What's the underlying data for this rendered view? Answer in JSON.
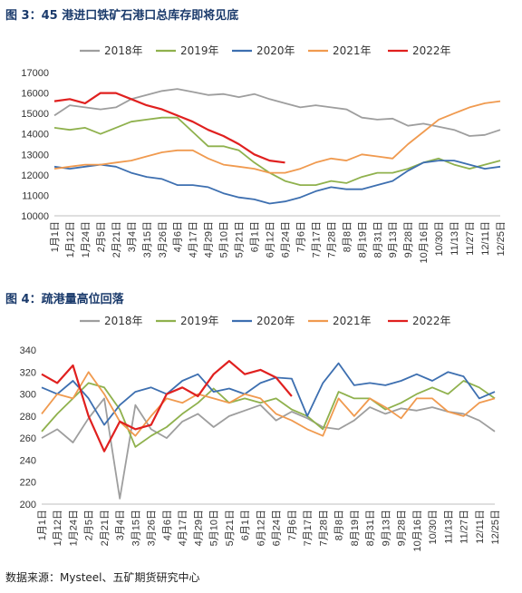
{
  "figure1_title": "图 3：45 港进口铁矿石港口总库存即将见底",
  "figure2_title": "图 4：疏港量高位回落",
  "source_text": "数据来源：Mysteel、五矿期货研究中心",
  "chart_data": [
    {
      "type": "line",
      "x_labels": [
        "1月1日",
        "1月12日",
        "1月24日",
        "2月5日",
        "2月21日",
        "3月4日",
        "3月15日",
        "3月26日",
        "4月6日",
        "4月17日",
        "4月29日",
        "5月10日",
        "5月21日",
        "6月1日",
        "6月12日",
        "6月24日",
        "7月6日",
        "7月17日",
        "7月28日",
        "8月8日",
        "8月19日",
        "8月31日",
        "9月13日",
        "9月28日",
        "10月16日",
        "10/30日",
        "11/13日",
        "11/27日",
        "12/11日",
        "12/25日"
      ],
      "ylim": [
        10000,
        17000
      ],
      "yticks": [
        10000,
        11000,
        12000,
        13000,
        14000,
        15000,
        16000,
        17000
      ],
      "series": [
        {
          "name": "2018年",
          "color": "#9e9e9e",
          "values": [
            14900,
            15400,
            15300,
            15200,
            15300,
            15700,
            15900,
            16100,
            16200,
            16050,
            15900,
            15950,
            15800,
            15950,
            15700,
            15500,
            15300,
            15400,
            15300,
            15200,
            14800,
            14700,
            14750,
            14400,
            14500,
            14350,
            14200,
            13900,
            13950,
            14200
          ]
        },
        {
          "name": "2019年",
          "color": "#8fb14d",
          "values": [
            14300,
            14200,
            14300,
            14000,
            14300,
            14600,
            14700,
            14800,
            14800,
            14100,
            13400,
            13400,
            13200,
            12600,
            12100,
            11700,
            11500,
            11500,
            11700,
            11600,
            11900,
            12100,
            12100,
            12300,
            12600,
            12800,
            12500,
            12300,
            12500,
            12700
          ]
        },
        {
          "name": "2020年",
          "color": "#3d6fb0",
          "values": [
            12400,
            12300,
            12400,
            12500,
            12400,
            12100,
            11900,
            11800,
            11500,
            11500,
            11400,
            11100,
            10900,
            10800,
            10600,
            10700,
            10900,
            11200,
            11400,
            11300,
            11300,
            11500,
            11700,
            12200,
            12600,
            12700,
            12700,
            12500,
            12300,
            12400
          ]
        },
        {
          "name": "2021年",
          "color": "#f09a4f",
          "values": [
            12300,
            12400,
            12500,
            12500,
            12600,
            12700,
            12900,
            13100,
            13200,
            13200,
            12800,
            12500,
            12400,
            12300,
            12100,
            12100,
            12300,
            12600,
            12800,
            12700,
            13000,
            12900,
            12800,
            13500,
            14100,
            14700,
            15000,
            15300,
            15500,
            15600
          ]
        },
        {
          "name": "2022年",
          "color": "#e0201f",
          "values": [
            15600,
            15700,
            15500,
            16000,
            16000,
            15700,
            15400,
            15200,
            14900,
            14600,
            14200,
            13900,
            13500,
            13000,
            12700,
            12600
          ]
        }
      ]
    },
    {
      "type": "line",
      "x_labels": [
        "1月1日",
        "1月12日",
        "1月24日",
        "2月5日",
        "2月21日",
        "3月4日",
        "3月15日",
        "3月26日",
        "4月6日",
        "4月17日",
        "4月29日",
        "5月10日",
        "5月21日",
        "6月1日",
        "6月12日",
        "6月24日",
        "7月6日",
        "7月17日",
        "7月28日",
        "8月8日",
        "8月19日",
        "8月31日",
        "9月13日",
        "9月28日",
        "10月16日",
        "10/30日",
        "11/13日",
        "11/27日",
        "12/11日",
        "12/25日"
      ],
      "ylim": [
        200,
        340
      ],
      "yticks": [
        200,
        220,
        240,
        260,
        280,
        300,
        320,
        340
      ],
      "series": [
        {
          "name": "2018年",
          "color": "#9e9e9e",
          "values": [
            260,
            268,
            256,
            278,
            296,
            205,
            290,
            268,
            260,
            275,
            282,
            270,
            280,
            285,
            290,
            276,
            284,
            278,
            270,
            268,
            276,
            288,
            282,
            287,
            285,
            288,
            284,
            282,
            276,
            266
          ]
        },
        {
          "name": "2019年",
          "color": "#8fb14d",
          "values": [
            266,
            282,
            296,
            310,
            306,
            286,
            252,
            262,
            270,
            282,
            292,
            305,
            292,
            296,
            292,
            296,
            286,
            280,
            268,
            302,
            296,
            296,
            286,
            292,
            300,
            306,
            300,
            312,
            306,
            296
          ]
        },
        {
          "name": "2020年",
          "color": "#3d6fb0",
          "values": [
            306,
            300,
            312,
            296,
            272,
            290,
            302,
            306,
            300,
            312,
            318,
            302,
            305,
            300,
            310,
            315,
            314,
            280,
            310,
            328,
            308,
            310,
            308,
            312,
            318,
            312,
            320,
            316,
            296,
            302
          ]
        },
        {
          "name": "2021年",
          "color": "#f09a4f",
          "values": [
            282,
            300,
            296,
            320,
            300,
            275,
            262,
            280,
            296,
            292,
            300,
            296,
            292,
            300,
            296,
            282,
            276,
            268,
            262,
            296,
            280,
            296,
            288,
            278,
            296,
            296,
            284,
            280,
            292,
            296
          ]
        },
        {
          "name": "2022年",
          "color": "#e0201f",
          "values": [
            318,
            310,
            326,
            280,
            248,
            275,
            268,
            272,
            300,
            306,
            298,
            318,
            330,
            318,
            322,
            315,
            298
          ]
        }
      ]
    }
  ]
}
